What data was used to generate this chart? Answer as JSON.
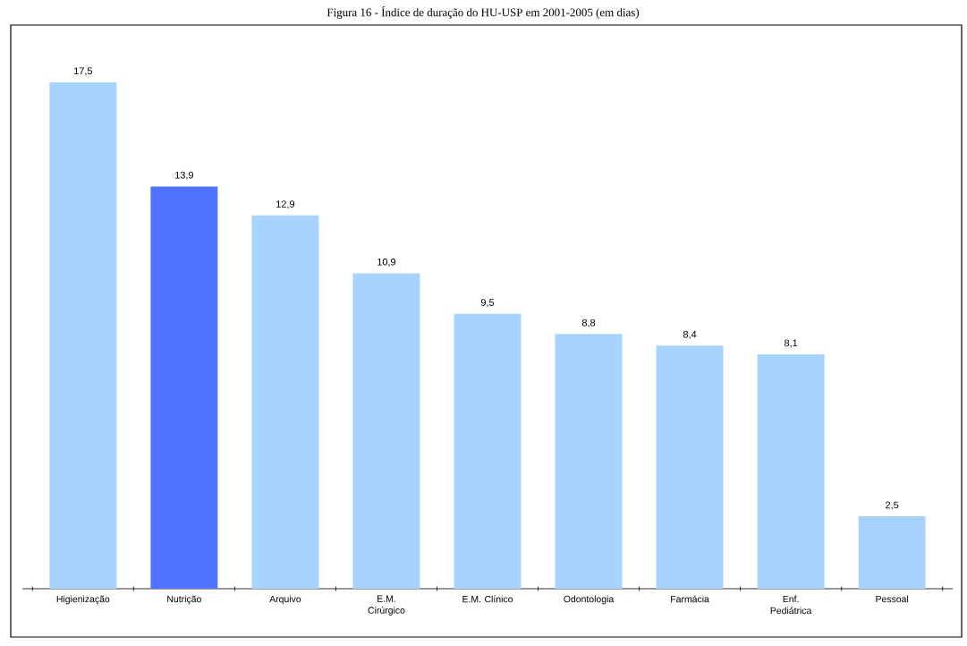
{
  "chart_data": {
    "type": "bar",
    "title": "Figura 16 - Índice de duração do HU-USP em 2001-2005 (em dias)",
    "categories": [
      "Higienização",
      "Nutrição",
      "Arquivo",
      "E.M. Cirúrgico",
      "E.M. Clínico",
      "Odontologia",
      "Farmácia",
      "Enf. Pediátrica",
      "Pessoal"
    ],
    "values": [
      17.5,
      13.9,
      12.9,
      10.9,
      9.5,
      8.8,
      8.4,
      8.1,
      2.5
    ],
    "value_labels": [
      "17,5",
      "13,9",
      "12,9",
      "10,9",
      "9,5",
      "8,8",
      "8,4",
      "8,1",
      "2,5"
    ],
    "colors": [
      "#a9d3ff",
      "#4f73ff",
      "#a9d3ff",
      "#a9d3ff",
      "#a9d3ff",
      "#a9d3ff",
      "#a9d3ff",
      "#a9d3ff",
      "#a9d3ff"
    ]
  }
}
